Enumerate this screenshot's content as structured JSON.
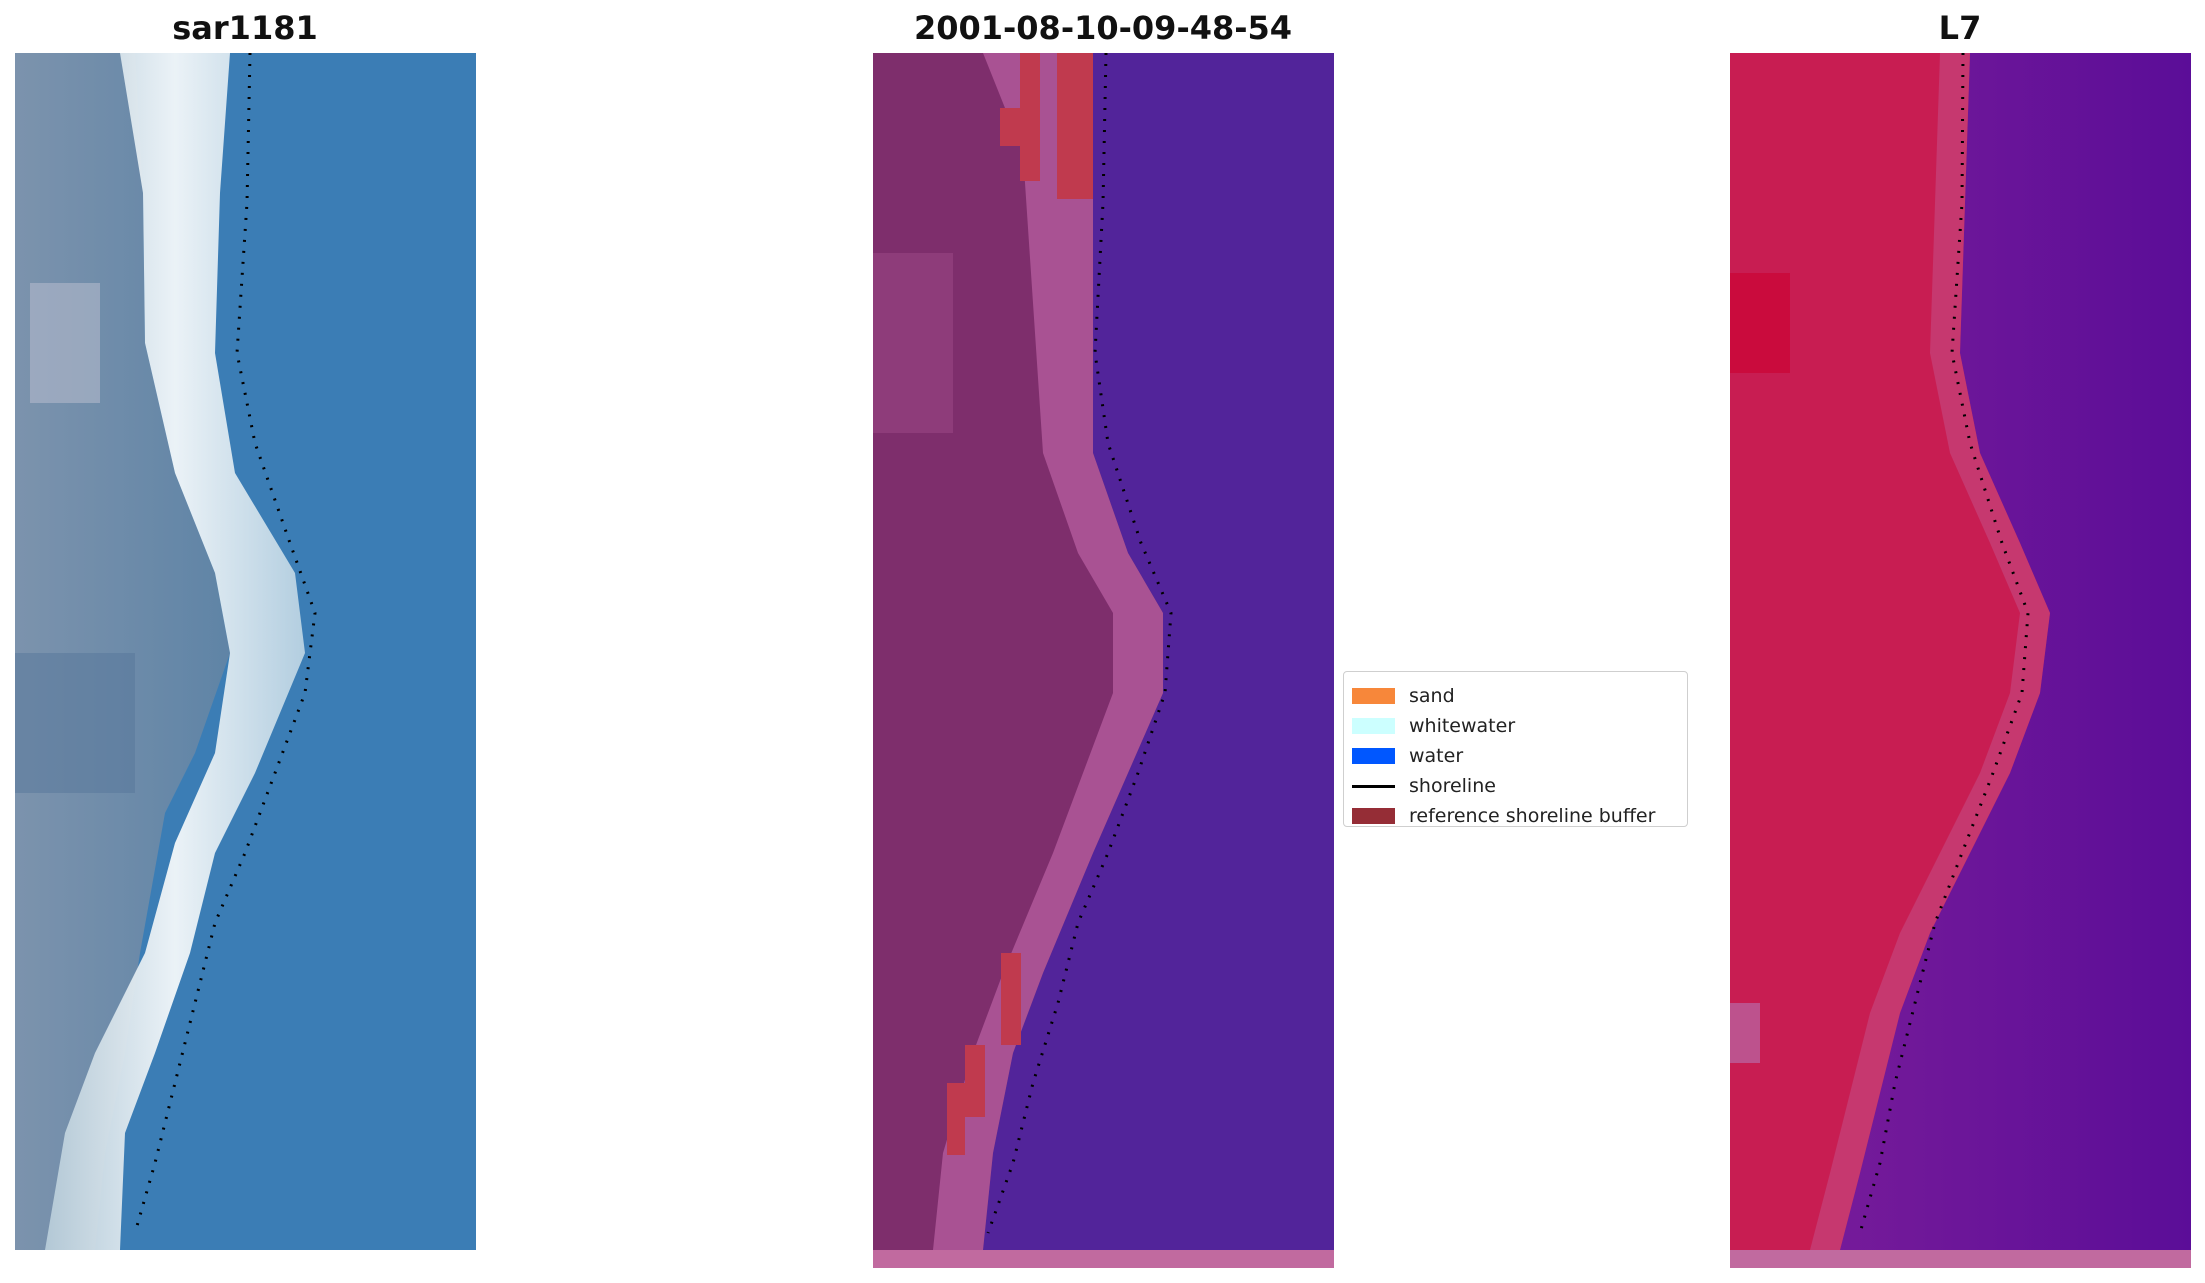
{
  "panels": [
    {
      "title": "sar1181"
    },
    {
      "title": "2001-08-10-09-48-54"
    },
    {
      "title": "L7"
    }
  ],
  "legend": {
    "items": [
      {
        "label": "sand",
        "color": "#f7873a",
        "kind": "patch"
      },
      {
        "label": "whitewater",
        "color": "#ccffff",
        "kind": "patch"
      },
      {
        "label": "water",
        "color": "#0057ff",
        "kind": "patch"
      },
      {
        "label": "shoreline",
        "color": "#000000",
        "kind": "line"
      },
      {
        "label": "reference shoreline buffer",
        "color": "#952d36",
        "kind": "patch"
      }
    ]
  },
  "colors": {
    "rgb_water": "#3a7bb3",
    "rgb_land": "#6a86a4",
    "rgb_whitewater": "#e9f1f6",
    "class_water": "#52249a",
    "class_land": "#7e2e6c",
    "class_edge": "#b0589a",
    "class_buffer": "#c03a4e",
    "index_land": "#c81d52",
    "index_water": "#6a1699"
  }
}
